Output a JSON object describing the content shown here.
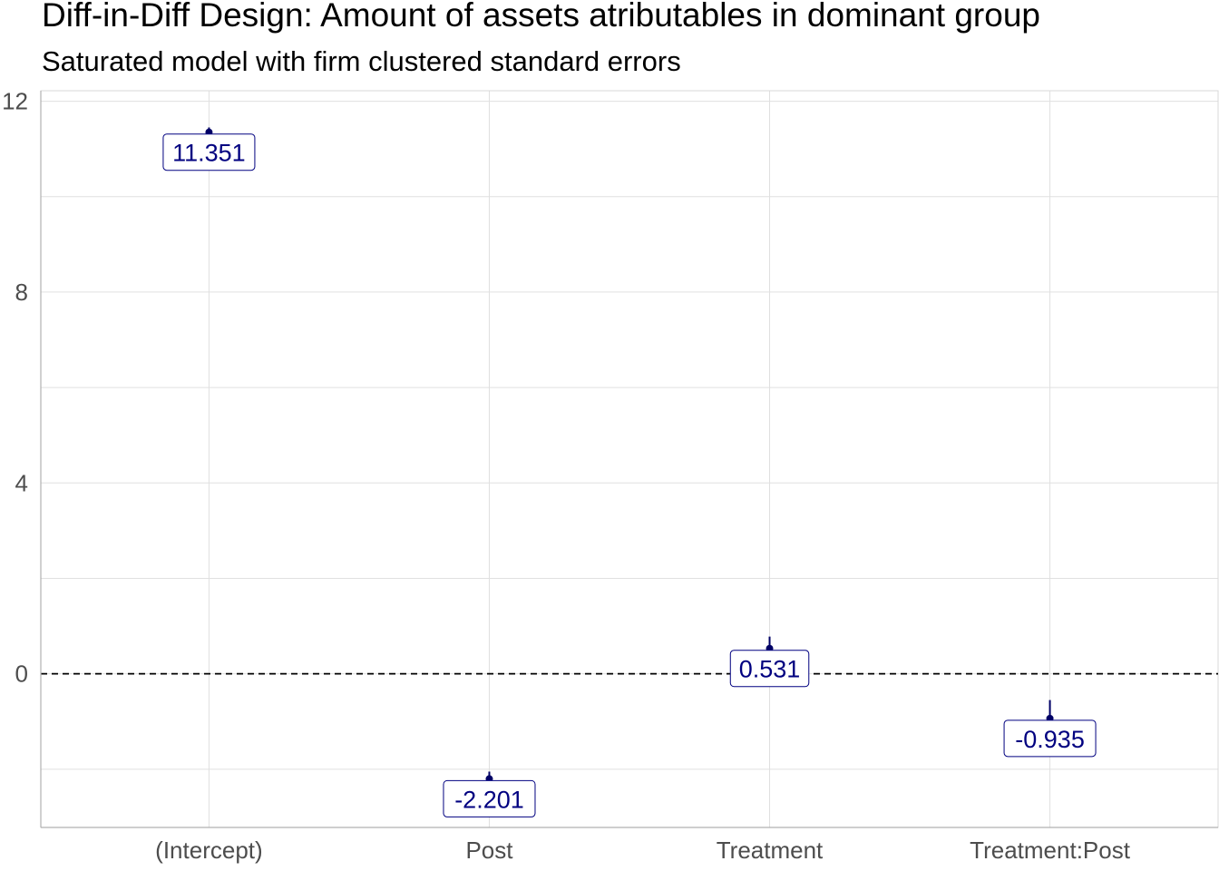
{
  "chart_data": {
    "type": "scatter",
    "title": "Diff-in-Diff Design: Amount of assets atributables in dominant group",
    "subtitle": "Saturated model with firm clustered standard errors",
    "xlabel": "",
    "ylabel": "",
    "categories": [
      "(Intercept)",
      "Post",
      "Treatment",
      "Treatment:Post"
    ],
    "estimates": [
      11.351,
      -2.201,
      0.531,
      -0.935
    ],
    "labels": [
      "11.351",
      "-2.201",
      "0.531",
      "-0.935"
    ],
    "ci_low": [
      11.25,
      -2.35,
      0.3,
      -1.3
    ],
    "ci_high": [
      11.45,
      -2.05,
      0.78,
      -0.55
    ],
    "yticks": [
      0,
      4,
      8,
      12
    ],
    "ytick_labels": [
      "0",
      "4",
      "8",
      "12"
    ],
    "ylim": [
      -3.0,
      12.0
    ],
    "reference_line": 0,
    "grid": true,
    "colors": {
      "point": "#000066",
      "label_text": "#000080",
      "label_border": "#000080",
      "grid": "#e0e0e0",
      "refline": "#000000"
    }
  }
}
